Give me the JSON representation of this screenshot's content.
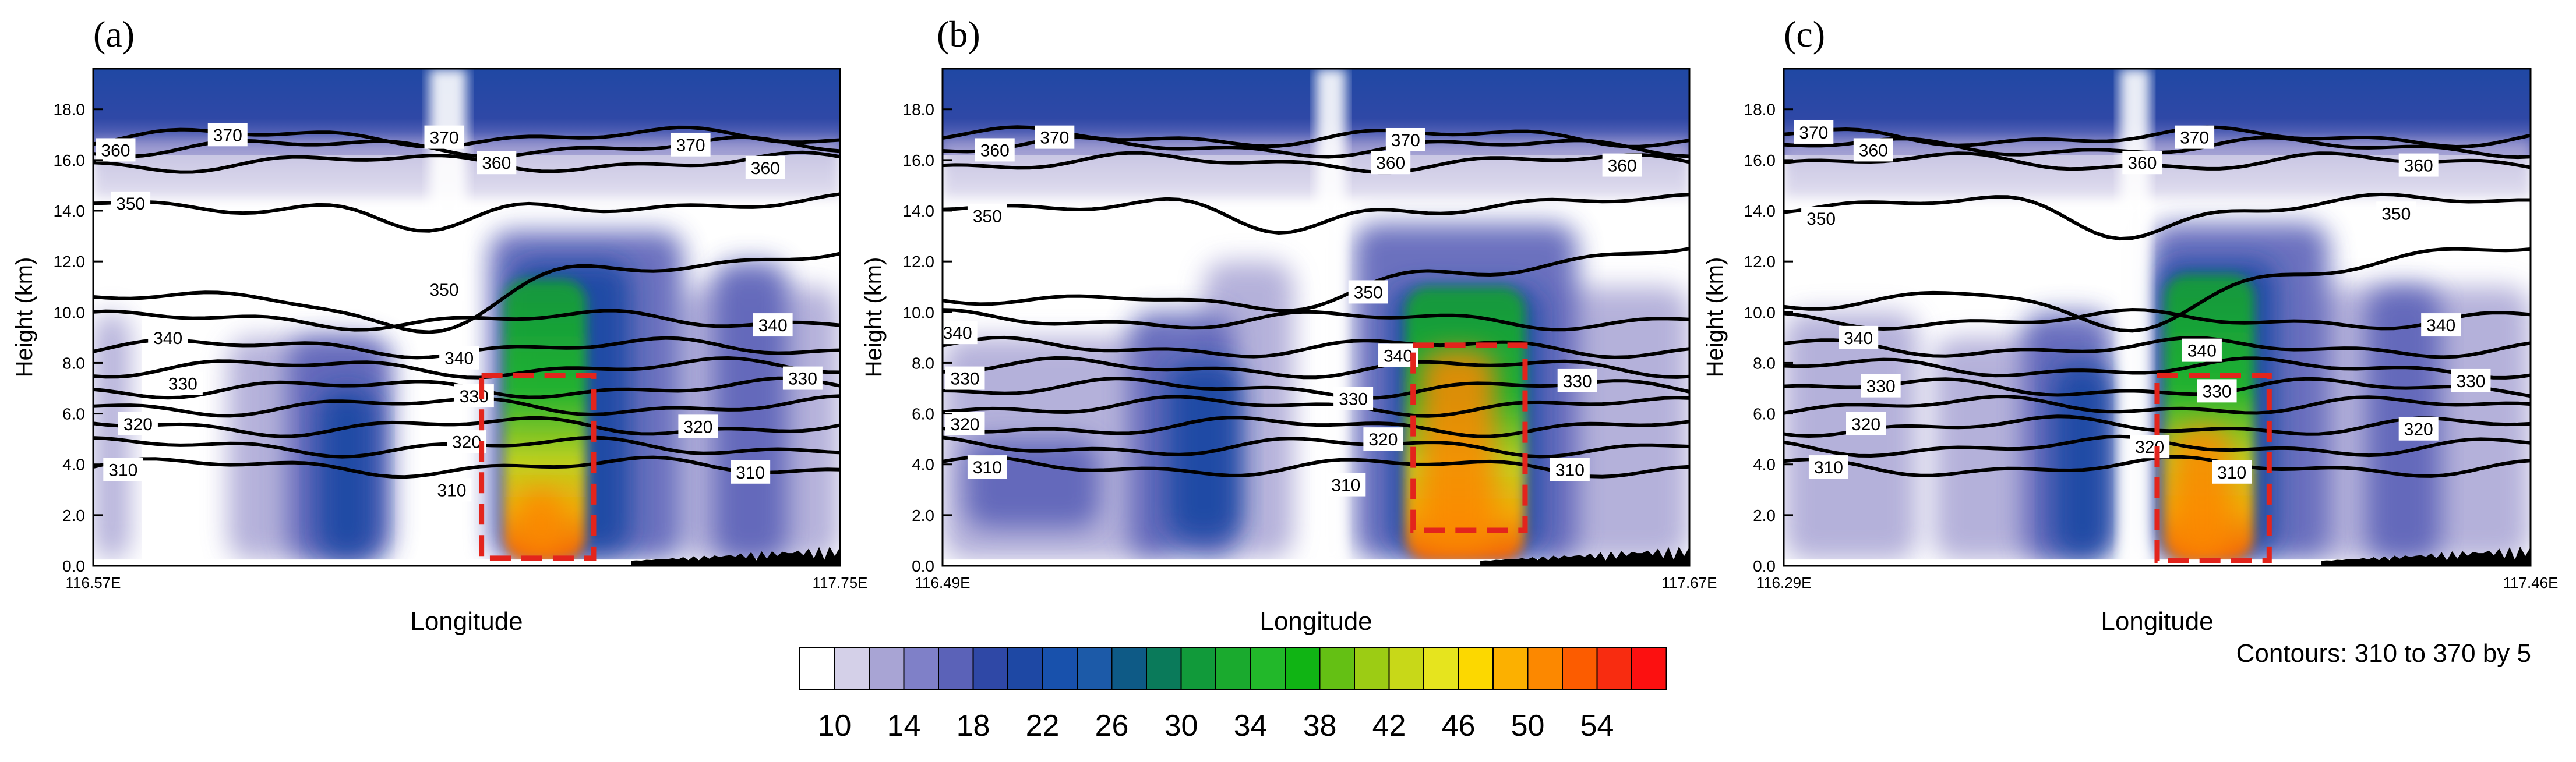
{
  "chart_data": [
    {
      "type": "heatmap",
      "panel_label": "(a)",
      "xlabel": "Longitude",
      "ylabel": "Height (km)",
      "x_tick_labels": [
        "116.57E",
        "117.75E"
      ],
      "y_ticks": [
        "0.0",
        "2.0",
        "4.0",
        "6.0",
        "8.0",
        "10.0",
        "12.0",
        "14.0",
        "16.0",
        "18.0"
      ],
      "ylim": [
        0,
        19.6
      ],
      "contour_labels": [
        {
          "value": "370",
          "x": 0.18,
          "y": 17.0
        },
        {
          "value": "370",
          "x": 0.47,
          "y": 16.9
        },
        {
          "value": "370",
          "x": 0.8,
          "y": 16.6
        },
        {
          "value": "360",
          "x": 0.03,
          "y": 16.4
        },
        {
          "value": "360",
          "x": 0.54,
          "y": 15.9
        },
        {
          "value": "360",
          "x": 0.9,
          "y": 15.7
        },
        {
          "value": "350",
          "x": 0.05,
          "y": 14.3
        },
        {
          "value": "350",
          "x": 0.47,
          "y": 10.9
        },
        {
          "value": "340",
          "x": 0.1,
          "y": 9.0
        },
        {
          "value": "340",
          "x": 0.49,
          "y": 8.2
        },
        {
          "value": "340",
          "x": 0.91,
          "y": 9.5
        },
        {
          "value": "330",
          "x": 0.12,
          "y": 7.2
        },
        {
          "value": "330",
          "x": 0.51,
          "y": 6.7
        },
        {
          "value": "330",
          "x": 0.95,
          "y": 7.4
        },
        {
          "value": "320",
          "x": 0.06,
          "y": 5.6
        },
        {
          "value": "320",
          "x": 0.5,
          "y": 4.9
        },
        {
          "value": "320",
          "x": 0.81,
          "y": 5.5
        },
        {
          "value": "310",
          "x": 0.04,
          "y": 3.8
        },
        {
          "value": "310",
          "x": 0.48,
          "y": 3.0
        },
        {
          "value": "310",
          "x": 0.88,
          "y": 3.7
        }
      ],
      "highlight_box": {
        "x0": 0.52,
        "x1": 0.67,
        "y0": 0.3,
        "y1": 7.5
      }
    },
    {
      "type": "heatmap",
      "panel_label": "(b)",
      "xlabel": "Longitude",
      "ylabel": "Height (km)",
      "x_tick_labels": [
        "116.49E",
        "117.67E"
      ],
      "y_ticks": [
        "0.0",
        "2.0",
        "4.0",
        "6.0",
        "8.0",
        "10.0",
        "12.0",
        "14.0",
        "16.0",
        "18.0"
      ],
      "ylim": [
        0,
        19.6
      ],
      "contour_labels": [
        {
          "value": "370",
          "x": 0.15,
          "y": 16.9
        },
        {
          "value": "370",
          "x": 0.62,
          "y": 16.8
        },
        {
          "value": "360",
          "x": 0.07,
          "y": 16.4
        },
        {
          "value": "360",
          "x": 0.6,
          "y": 15.9
        },
        {
          "value": "360",
          "x": 0.91,
          "y": 15.8
        },
        {
          "value": "350",
          "x": 0.06,
          "y": 13.8
        },
        {
          "value": "350",
          "x": 0.57,
          "y": 10.8
        },
        {
          "value": "340",
          "x": 0.02,
          "y": 9.2
        },
        {
          "value": "340",
          "x": 0.61,
          "y": 8.3
        },
        {
          "value": "330",
          "x": 0.03,
          "y": 7.4
        },
        {
          "value": "330",
          "x": 0.55,
          "y": 6.6
        },
        {
          "value": "330",
          "x": 0.85,
          "y": 7.3
        },
        {
          "value": "320",
          "x": 0.03,
          "y": 5.6
        },
        {
          "value": "320",
          "x": 0.59,
          "y": 5.0
        },
        {
          "value": "310",
          "x": 0.06,
          "y": 3.9
        },
        {
          "value": "310",
          "x": 0.54,
          "y": 3.2
        },
        {
          "value": "310",
          "x": 0.84,
          "y": 3.8
        }
      ],
      "highlight_box": {
        "x0": 0.63,
        "x1": 0.78,
        "y0": 1.4,
        "y1": 8.7
      }
    },
    {
      "type": "heatmap",
      "panel_label": "(c)",
      "xlabel": "Longitude",
      "ylabel": "Height (km)",
      "x_tick_labels": [
        "116.29E",
        "117.46E"
      ],
      "y_ticks": [
        "0.0",
        "2.0",
        "4.0",
        "6.0",
        "8.0",
        "10.0",
        "12.0",
        "14.0",
        "16.0",
        "18.0"
      ],
      "ylim": [
        0,
        19.6
      ],
      "contour_labels": [
        {
          "value": "370",
          "x": 0.04,
          "y": 17.1
        },
        {
          "value": "370",
          "x": 0.55,
          "y": 16.9
        },
        {
          "value": "360",
          "x": 0.12,
          "y": 16.4
        },
        {
          "value": "360",
          "x": 0.48,
          "y": 15.9
        },
        {
          "value": "360",
          "x": 0.85,
          "y": 15.8
        },
        {
          "value": "350",
          "x": 0.05,
          "y": 13.7
        },
        {
          "value": "350",
          "x": 0.82,
          "y": 13.9
        },
        {
          "value": "340",
          "x": 0.1,
          "y": 9.0
        },
        {
          "value": "340",
          "x": 0.56,
          "y": 8.5
        },
        {
          "value": "340",
          "x": 0.88,
          "y": 9.5
        },
        {
          "value": "330",
          "x": 0.13,
          "y": 7.1
        },
        {
          "value": "330",
          "x": 0.58,
          "y": 6.9
        },
        {
          "value": "330",
          "x": 0.92,
          "y": 7.3
        },
        {
          "value": "320",
          "x": 0.11,
          "y": 5.6
        },
        {
          "value": "320",
          "x": 0.49,
          "y": 4.7
        },
        {
          "value": "320",
          "x": 0.85,
          "y": 5.4
        },
        {
          "value": "310",
          "x": 0.06,
          "y": 3.9
        },
        {
          "value": "310",
          "x": 0.6,
          "y": 3.7
        }
      ],
      "highlight_box": {
        "x0": 0.5,
        "x1": 0.65,
        "y0": 0.2,
        "y1": 7.5
      }
    }
  ],
  "colorbar": {
    "colors": [
      "#ffffff",
      "#d4d0e8",
      "#a8a4d4",
      "#7f80c8",
      "#5b62b8",
      "#2f48a6",
      "#1e48a4",
      "#1851ac",
      "#1c5aa8",
      "#0e5a86",
      "#0a7a5a",
      "#119a3a",
      "#1aaa2e",
      "#22b82a",
      "#10b414",
      "#64c014",
      "#9ccc14",
      "#c8d818",
      "#e6e41e",
      "#fcd800",
      "#fcb000",
      "#fc8800",
      "#fc5c00",
      "#f82c10",
      "#fc1010"
    ],
    "tick_labels": [
      "10",
      "14",
      "18",
      "22",
      "26",
      "30",
      "34",
      "38",
      "42",
      "46",
      "50",
      "54"
    ]
  },
  "contour_note": "Contours: 310 to 370 by 5"
}
